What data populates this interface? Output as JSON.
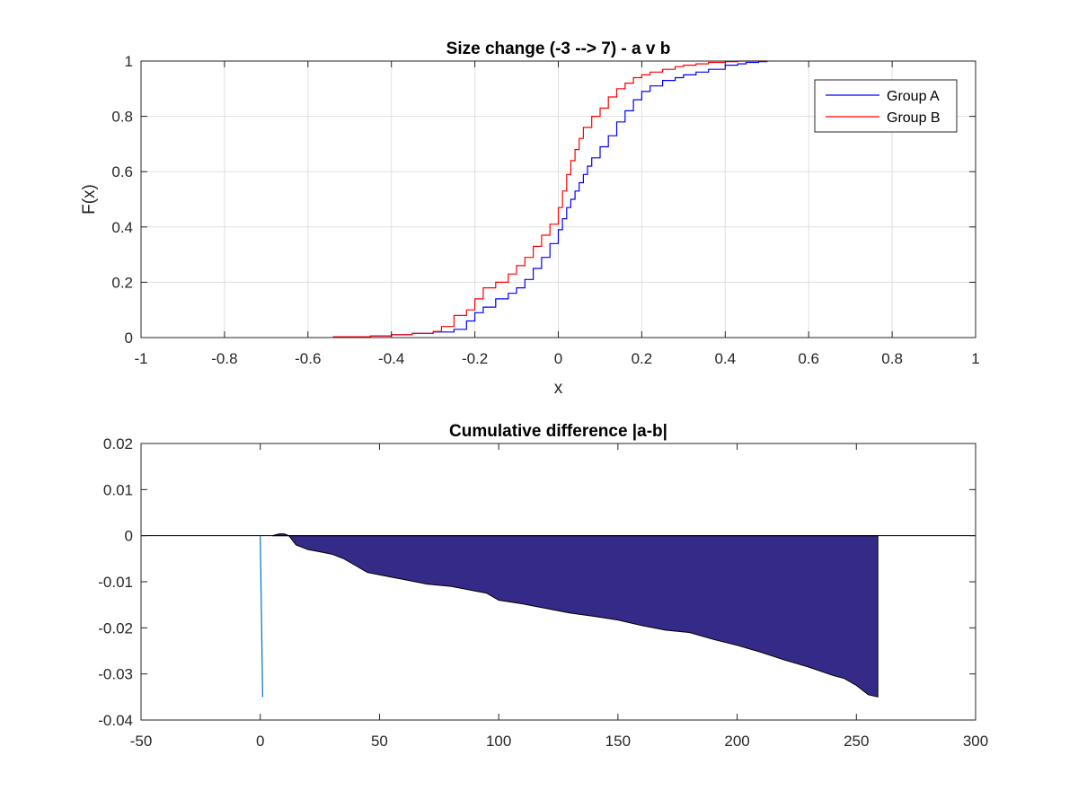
{
  "colors": {
    "group_a": "#0000ff",
    "group_b": "#ff0000",
    "area_fill": "#352a87",
    "area_edge": "#000000",
    "spike": "#0072bd",
    "zero_line": "#000000"
  },
  "chart_data": [
    {
      "type": "line",
      "title": "Size change (-3 --> 7) - a v b",
      "xlabel": "x",
      "ylabel": "F(x)",
      "xlim": [
        -1,
        1
      ],
      "ylim": [
        0,
        1
      ],
      "xticks": [
        -1,
        -0.8,
        -0.6,
        -0.4,
        -0.2,
        0,
        0.2,
        0.4,
        0.6,
        0.8,
        1
      ],
      "yticks": [
        0,
        0.2,
        0.4,
        0.6,
        0.8,
        1
      ],
      "xtick_labels": [
        "-1",
        "-0.8",
        "-0.6",
        "-0.4",
        "-0.2",
        "0",
        "0.2",
        "0.4",
        "0.6",
        "0.8",
        "1"
      ],
      "ytick_labels": [
        "0",
        "0.2",
        "0.4",
        "0.6",
        "0.8",
        "1"
      ],
      "grid": true,
      "legend": "top-right",
      "series": [
        {
          "name": "Group A",
          "color": "#0000ff",
          "x": [
            -0.54,
            -0.5,
            -0.45,
            -0.4,
            -0.35,
            -0.3,
            -0.25,
            -0.22,
            -0.2,
            -0.18,
            -0.15,
            -0.12,
            -0.1,
            -0.08,
            -0.06,
            -0.04,
            -0.02,
            0,
            0.01,
            0.02,
            0.03,
            0.04,
            0.05,
            0.06,
            0.07,
            0.08,
            0.1,
            0.12,
            0.14,
            0.16,
            0.18,
            0.2,
            0.22,
            0.25,
            0.28,
            0.3,
            0.33,
            0.36,
            0.4,
            0.43,
            0.45,
            0.48,
            0.5
          ],
          "y": [
            0.003,
            0.003,
            0.006,
            0.01,
            0.015,
            0.02,
            0.03,
            0.06,
            0.09,
            0.11,
            0.14,
            0.16,
            0.18,
            0.21,
            0.25,
            0.29,
            0.34,
            0.39,
            0.43,
            0.47,
            0.5,
            0.53,
            0.56,
            0.59,
            0.62,
            0.65,
            0.69,
            0.73,
            0.78,
            0.82,
            0.86,
            0.89,
            0.91,
            0.93,
            0.94,
            0.95,
            0.96,
            0.97,
            0.985,
            0.99,
            0.995,
            0.998,
            1
          ]
        },
        {
          "name": "Group B",
          "color": "#ff0000",
          "x": [
            -0.54,
            -0.5,
            -0.45,
            -0.4,
            -0.35,
            -0.3,
            -0.28,
            -0.25,
            -0.22,
            -0.2,
            -0.18,
            -0.15,
            -0.12,
            -0.1,
            -0.08,
            -0.06,
            -0.04,
            -0.02,
            0,
            0.01,
            0.02,
            0.03,
            0.04,
            0.05,
            0.06,
            0.08,
            0.1,
            0.12,
            0.14,
            0.16,
            0.18,
            0.2,
            0.22,
            0.25,
            0.28,
            0.3,
            0.33,
            0.36,
            0.4,
            0.43,
            0.45,
            0.5
          ],
          "y": [
            0.003,
            0.003,
            0.006,
            0.01,
            0.015,
            0.022,
            0.04,
            0.08,
            0.1,
            0.14,
            0.18,
            0.2,
            0.23,
            0.26,
            0.29,
            0.33,
            0.37,
            0.41,
            0.47,
            0.53,
            0.59,
            0.64,
            0.68,
            0.72,
            0.76,
            0.8,
            0.83,
            0.87,
            0.9,
            0.92,
            0.94,
            0.95,
            0.96,
            0.97,
            0.98,
            0.985,
            0.99,
            0.995,
            0.998,
            1,
            1,
            1
          ]
        }
      ]
    },
    {
      "type": "area",
      "title": "Cumulative difference |a-b|",
      "xlim": [
        -50,
        300
      ],
      "ylim": [
        -0.04,
        0.02
      ],
      "xticks": [
        -50,
        0,
        50,
        100,
        150,
        200,
        250,
        300
      ],
      "yticks": [
        -0.04,
        -0.03,
        -0.02,
        -0.01,
        0,
        0.01,
        0.02
      ],
      "xtick_labels": [
        "-50",
        "0",
        "50",
        "100",
        "150",
        "200",
        "250",
        "300"
      ],
      "ytick_labels": [
        "-0.04",
        "-0.03",
        "-0.02",
        "-0.01",
        "0",
        "0.01",
        "0.02"
      ],
      "grid": false,
      "spike": {
        "x": [
          0,
          1
        ],
        "y": [
          0,
          -0.035
        ]
      },
      "series": [
        {
          "x": [
            5,
            8,
            10,
            12,
            15,
            20,
            25,
            30,
            35,
            40,
            45,
            50,
            55,
            60,
            70,
            80,
            90,
            95,
            100,
            110,
            120,
            130,
            140,
            150,
            160,
            170,
            180,
            190,
            200,
            210,
            220,
            230,
            240,
            245,
            250,
            255,
            259
          ],
          "y": [
            0,
            0.0004,
            0.0004,
            0,
            -0.002,
            -0.003,
            -0.0035,
            -0.004,
            -0.005,
            -0.0065,
            -0.008,
            -0.0085,
            -0.009,
            -0.0095,
            -0.0105,
            -0.011,
            -0.012,
            -0.0125,
            -0.014,
            -0.0148,
            -0.0158,
            -0.0168,
            -0.0175,
            -0.0183,
            -0.0195,
            -0.0205,
            -0.021,
            -0.0225,
            -0.0238,
            -0.0253,
            -0.027,
            -0.0285,
            -0.0303,
            -0.031,
            -0.0325,
            -0.0345,
            -0.035
          ]
        }
      ]
    }
  ]
}
